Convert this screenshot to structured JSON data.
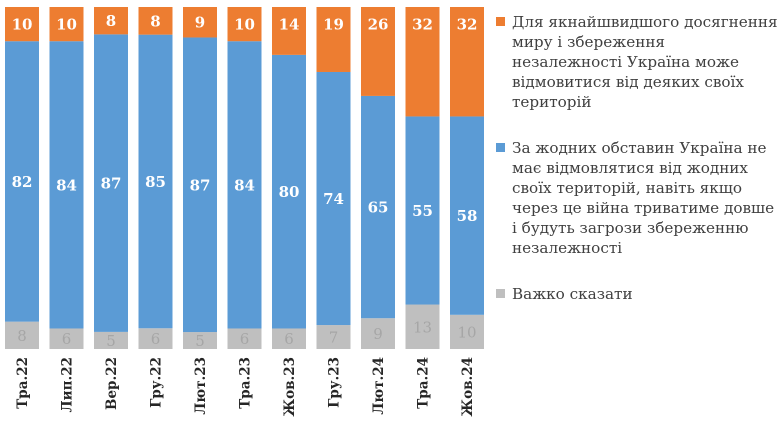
{
  "chart_data": {
    "type": "stacked_bar",
    "categories": [
      "Тра.22",
      "Лип.22",
      "Вер.22",
      "Гру.22",
      "Лют.23",
      "Тра.23",
      "Жов.23",
      "Гру.23",
      "Лют.24",
      "Тра.24",
      "Жов.24"
    ],
    "series": [
      {
        "name": "Важко сказати",
        "color": "#bfbfbf",
        "values": [
          8,
          6,
          5,
          6,
          5,
          6,
          6,
          7,
          9,
          13,
          10
        ]
      },
      {
        "name": "За жодних обставин Україна не має відмовлятися від жодних своїх територій, навіть якщо через це війна триватиме довше і будуть загрози збереженню незалежності",
        "color": "#5b9bd5",
        "values": [
          82,
          84,
          87,
          85,
          87,
          84,
          80,
          74,
          65,
          55,
          58
        ]
      },
      {
        "name": "Для якнайшвидшого досягнення миру і збереження незалежності Україна може відмовитися від деяких своїх територій",
        "color": "#ed7d31",
        "values": [
          10,
          10,
          8,
          8,
          9,
          10,
          14,
          19,
          26,
          32,
          32
        ]
      }
    ],
    "ylim": [
      0,
      100
    ]
  },
  "legend": [
    {
      "label": "Для якнайшвидшого досягнення миру і збереження незалежності Україна може відмовитися від деяких своїх територій",
      "color": "#ed7d31"
    },
    {
      "label": "За жодних обставин Україна не має відмовлятися від жодних своїх територій, навіть якщо через це війна триватиме довше і будуть загрози збереженню незалежності",
      "color": "#5b9bd5"
    },
    {
      "label": "Важко сказати",
      "color": "#bfbfbf"
    }
  ]
}
